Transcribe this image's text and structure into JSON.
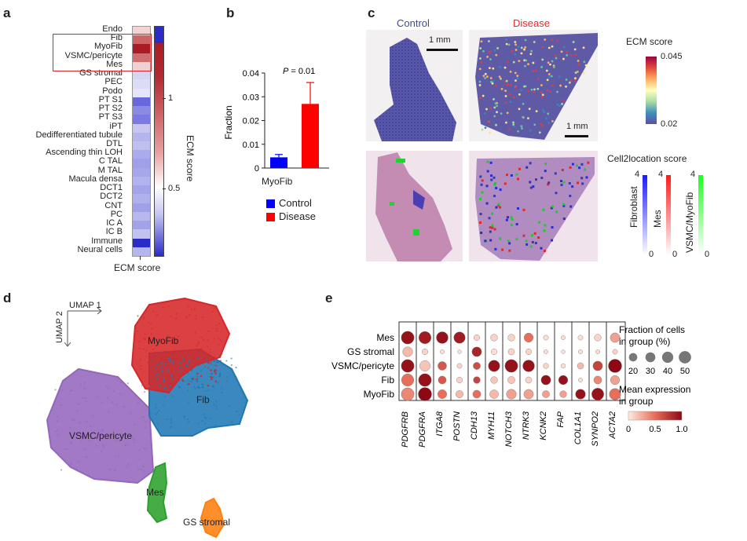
{
  "panel_labels": {
    "a": "a",
    "b": "b",
    "c": "c",
    "d": "d",
    "e": "e"
  },
  "panel_a": {
    "xlabel": "ECM score",
    "colorbar_label": "ECM score",
    "colorbar_ticks": [
      "1",
      "0.5"
    ],
    "highlighted": [
      "Fib",
      "MyoFib",
      "VSMC/pericyte",
      "Mes"
    ],
    "rows": [
      {
        "label": "Endo",
        "color": "#f4d3d3"
      },
      {
        "label": "Fib",
        "color": "#cc6364"
      },
      {
        "label": "MyoFib",
        "color": "#a81d24"
      },
      {
        "label": "VSMC/pericyte",
        "color": "#cd6f70"
      },
      {
        "label": "Mes",
        "color": "#f1d0d1"
      },
      {
        "label": "GS stromal",
        "color": "#d6d6f4"
      },
      {
        "label": "PEC",
        "color": "#dcdcf6"
      },
      {
        "label": "Podo",
        "color": "#e5e5f9"
      },
      {
        "label": "PT S1",
        "color": "#6868dc"
      },
      {
        "label": "PT S2",
        "color": "#8a8ae6"
      },
      {
        "label": "PT S3",
        "color": "#7a7ae2"
      },
      {
        "label": "iPT",
        "color": "#c6c6f1"
      },
      {
        "label": "Dedifferentiated tubule",
        "color": "#b5b5ee"
      },
      {
        "label": "DTL",
        "color": "#c0c0f0"
      },
      {
        "label": "Ascending thin LOH",
        "color": "#aaaaec"
      },
      {
        "label": "C TAL",
        "color": "#9f9fea"
      },
      {
        "label": "M TAL",
        "color": "#a6a6eb"
      },
      {
        "label": "Macula densa",
        "color": "#b2b2ee"
      },
      {
        "label": "DCT1",
        "color": "#a4a4eb"
      },
      {
        "label": "DCT2",
        "color": "#b0b0ee"
      },
      {
        "label": "CNT",
        "color": "#a0a0ea"
      },
      {
        "label": "PC",
        "color": "#b8b8ef"
      },
      {
        "label": "IC A",
        "color": "#a2a2ea"
      },
      {
        "label": "IC B",
        "color": "#c2c2f1"
      },
      {
        "label": "Immune",
        "color": "#2b2bc8"
      },
      {
        "label": "Neural cells",
        "color": "#b6b6ef"
      }
    ]
  },
  "panel_b": {
    "chart_data": {
      "type": "bar",
      "categories": [
        "MyoFib"
      ],
      "series": [
        {
          "name": "Control",
          "values": [
            0.0045
          ],
          "error": [
            0.0012
          ],
          "color": "#0000ff"
        },
        {
          "name": "Disease",
          "values": [
            0.027
          ],
          "error": [
            0.009
          ],
          "color": "#ff0000"
        }
      ],
      "ylabel": "Fraction",
      "ylim": [
        0,
        0.04
      ],
      "yticks": [
        "0",
        "0.01",
        "0.02",
        "0.03",
        "0.04"
      ],
      "annotation": "P = 0.01"
    },
    "legend": [
      {
        "label": "Control",
        "color": "#0000ff"
      },
      {
        "label": "Disease",
        "color": "#ff0000"
      }
    ]
  },
  "panel_c": {
    "control_title": "Control",
    "disease_title": "Disease",
    "scalebar_top": "1 mm",
    "scalebar_right": "1 mm",
    "ecm_legend_title": "ECM score",
    "ecm_legend_max": "0.045",
    "ecm_legend_min": "0.02",
    "c2l_title": "Cell2location score",
    "c2l_bars": [
      {
        "label": "Fibroblast",
        "color": "#1a1aff",
        "max": "4",
        "min": "0"
      },
      {
        "label": "Mes",
        "color": "#ff1a1a",
        "max": "4",
        "min": "0"
      },
      {
        "label": "VSMC/MyoFib",
        "color": "#1aff1a",
        "max": "4",
        "min": "0"
      }
    ]
  },
  "panel_d": {
    "umap1": "UMAP 1",
    "umap2": "UMAP 2",
    "clusters": [
      {
        "label": "MyoFib",
        "color": "#d62728"
      },
      {
        "label": "Fib",
        "color": "#1f77b4"
      },
      {
        "label": "VSMC/pericyte",
        "color": "#9467bd"
      },
      {
        "label": "Mes",
        "color": "#2ca02c"
      },
      {
        "label": "GS stromal",
        "color": "#ff7f0e"
      }
    ]
  },
  "panel_e": {
    "chart_data": {
      "type": "dotplot",
      "groups": [
        "Mes",
        "GS stromal",
        "VSMC/pericyte",
        "Fib",
        "MyoFib"
      ],
      "genes": [
        "PDGFRB",
        "PDGFRA",
        "ITGA8",
        "POSTN",
        "CDH13",
        "MYH11",
        "NOTCH3",
        "NTRK3",
        "KCNK2",
        "FAP",
        "COL1A1",
        "SYNPO2",
        "ACTA2"
      ],
      "size_pct": [
        [
          55,
          50,
          45,
          42,
          8,
          12,
          12,
          25,
          5,
          3,
          5,
          12,
          28
        ],
        [
          30,
          8,
          3,
          2,
          28,
          8,
          10,
          8,
          3,
          2,
          3,
          3,
          5
        ],
        [
          55,
          35,
          22,
          5,
          14,
          42,
          55,
          45,
          6,
          4,
          10,
          28,
          60
        ],
        [
          50,
          55,
          18,
          8,
          12,
          12,
          14,
          10,
          28,
          25,
          3,
          18,
          25
        ],
        [
          55,
          60,
          24,
          15,
          18,
          22,
          30,
          28,
          14,
          12,
          30,
          48,
          42
        ]
      ],
      "expr": [
        [
          0.95,
          0.9,
          0.95,
          0.9,
          0.1,
          0.1,
          0.1,
          0.5,
          0.05,
          0.05,
          0.05,
          0.1,
          0.3
        ],
        [
          0.2,
          0.1,
          0.05,
          0.05,
          0.85,
          0.05,
          0.1,
          0.1,
          0.05,
          0.05,
          0.05,
          0.05,
          0.1
        ],
        [
          0.95,
          0.15,
          0.6,
          0.1,
          0.65,
          0.95,
          0.95,
          0.95,
          0.1,
          0.05,
          0.2,
          0.7,
          1.0
        ],
        [
          0.5,
          0.95,
          0.6,
          0.1,
          0.7,
          0.15,
          0.15,
          0.1,
          0.95,
          0.95,
          0.05,
          0.4,
          0.3
        ],
        [
          0.4,
          1.0,
          0.5,
          0.2,
          0.5,
          0.2,
          0.3,
          0.3,
          0.3,
          0.3,
          0.95,
          0.95,
          0.5
        ]
      ],
      "size_legend_title": "Fraction of cells in group (%)",
      "size_legend": [
        "20",
        "30",
        "40",
        "50"
      ],
      "color_legend_title": "Mean expression in group",
      "color_legend": [
        "0",
        "0.5",
        "1.0"
      ]
    }
  }
}
